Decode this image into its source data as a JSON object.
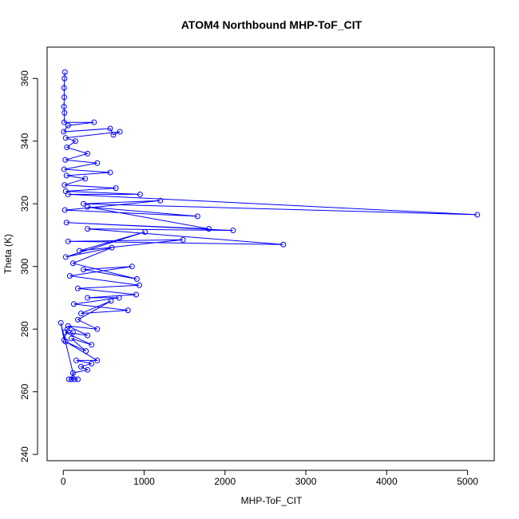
{
  "chart_data": {
    "type": "scatter",
    "title": "ATOM4 Northbound MHP-ToF_CIT",
    "xlabel": "MHP-ToF_CIT",
    "ylabel": "Theta (K)",
    "xlim": [
      -200,
      5330
    ],
    "ylim": [
      238,
      370
    ],
    "xticks": [
      0,
      1000,
      2000,
      3000,
      4000,
      5000
    ],
    "yticks": [
      240,
      260,
      280,
      300,
      320,
      340,
      360
    ],
    "grid": false,
    "color": "#0000ff",
    "marker": "open-circle",
    "connected": true,
    "series": [
      {
        "points": [
          [
            20,
            362
          ],
          [
            15,
            360
          ],
          [
            10,
            357
          ],
          [
            12,
            354
          ],
          [
            8,
            351
          ],
          [
            15,
            349
          ],
          [
            10,
            346
          ],
          [
            380,
            346
          ],
          [
            60,
            345
          ],
          [
            5,
            343
          ],
          [
            580,
            344
          ],
          [
            620,
            342
          ],
          [
            700,
            343
          ],
          [
            30,
            341
          ],
          [
            150,
            340
          ],
          [
            45,
            338
          ],
          [
            300,
            336
          ],
          [
            25,
            334
          ],
          [
            420,
            333
          ],
          [
            10,
            331
          ],
          [
            580,
            330
          ],
          [
            40,
            329
          ],
          [
            270,
            328
          ],
          [
            15,
            326
          ],
          [
            650,
            325
          ],
          [
            30,
            324
          ],
          [
            950,
            323
          ],
          [
            60,
            323
          ],
          [
            5120,
            316.5
          ],
          [
            250,
            320
          ],
          [
            1200,
            321
          ],
          [
            20,
            318
          ],
          [
            1660,
            316
          ],
          [
            300,
            319
          ],
          [
            1800,
            312
          ],
          [
            40,
            314
          ],
          [
            2100,
            311.5
          ],
          [
            300,
            312
          ],
          [
            2720,
            307
          ],
          [
            60,
            308
          ],
          [
            1480,
            308.5
          ],
          [
            200,
            305
          ],
          [
            1010,
            311
          ],
          [
            30,
            303
          ],
          [
            600,
            306
          ],
          [
            120,
            301
          ],
          [
            910,
            296
          ],
          [
            250,
            299
          ],
          [
            850,
            300
          ],
          [
            80,
            297
          ],
          [
            940,
            294
          ],
          [
            180,
            293
          ],
          [
            900,
            291
          ],
          [
            300,
            290
          ],
          [
            690,
            290
          ],
          [
            130,
            288
          ],
          [
            800,
            286
          ],
          [
            220,
            285
          ],
          [
            590,
            289
          ],
          [
            180,
            283
          ],
          [
            420,
            280
          ],
          [
            60,
            281
          ],
          [
            300,
            278
          ],
          [
            20,
            279
          ],
          [
            350,
            275
          ],
          [
            100,
            277
          ],
          [
            280,
            273
          ],
          [
            30,
            276
          ],
          [
            420,
            270
          ],
          [
            160,
            270
          ],
          [
            350,
            269
          ],
          [
            220,
            268
          ],
          [
            300,
            267
          ],
          [
            120,
            266
          ],
          [
            100,
            264
          ],
          [
            70,
            264
          ],
          [
            180,
            264
          ],
          [
            140,
            264
          ],
          [
            -30,
            282
          ],
          [
            10,
            276.5
          ],
          [
            50,
            280
          ],
          [
            120,
            279
          ]
        ]
      }
    ]
  }
}
